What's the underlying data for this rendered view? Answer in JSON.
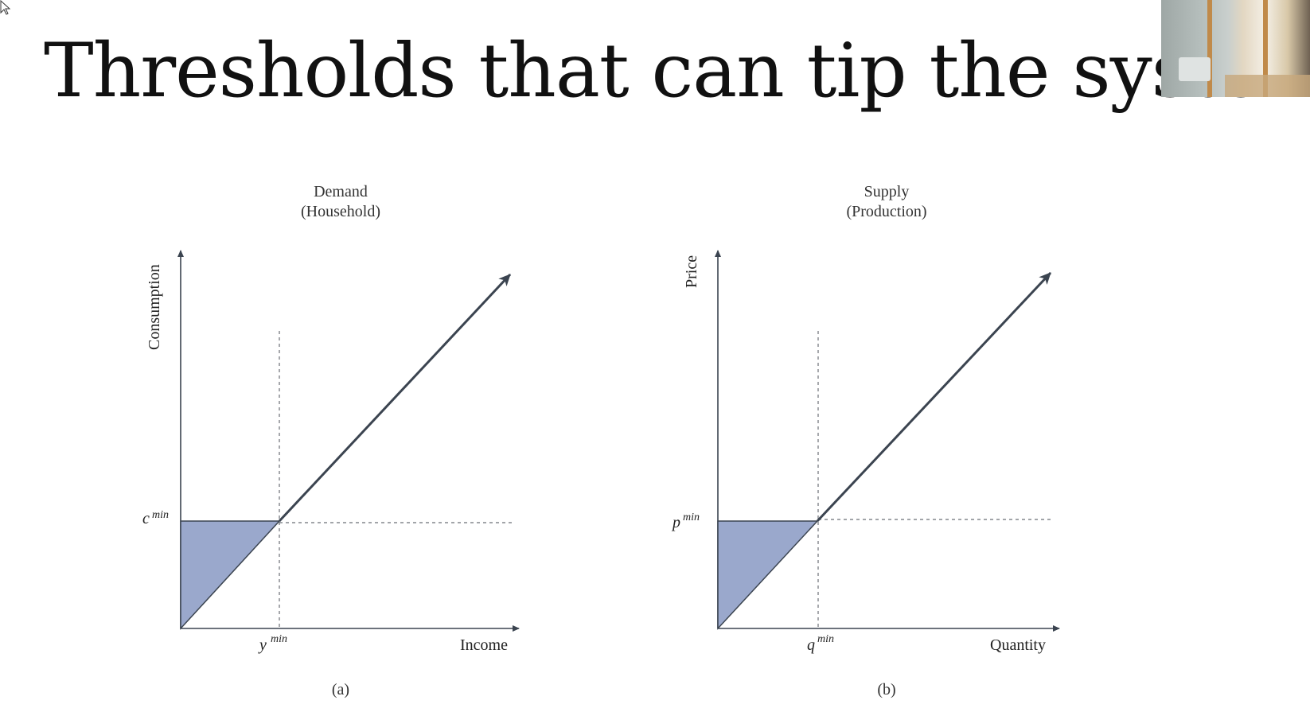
{
  "slide": {
    "title": "Thresholds that can tip the system"
  },
  "panels": [
    {
      "title_line1": "Demand",
      "title_line2": "(Household)",
      "y_axis_label": "Consumption",
      "x_axis_label": "Income",
      "threshold_y_symbol": "c",
      "threshold_y_sup": "min",
      "threshold_x_symbol": "y",
      "threshold_x_sup": "min",
      "caption": "(a)"
    },
    {
      "title_line1": "Supply",
      "title_line2": "(Production)",
      "y_axis_label": "Price",
      "x_axis_label": "Quantity",
      "threshold_y_symbol": "p",
      "threshold_y_sup": "min",
      "threshold_x_symbol": "q",
      "threshold_x_sup": "min",
      "caption": "(b)"
    }
  ],
  "colors": {
    "axis": "#3b4450",
    "shaded_region": "#9aa8cc",
    "guide": "#6b6f76"
  },
  "icons": [
    "mouse-pointer-icon"
  ]
}
